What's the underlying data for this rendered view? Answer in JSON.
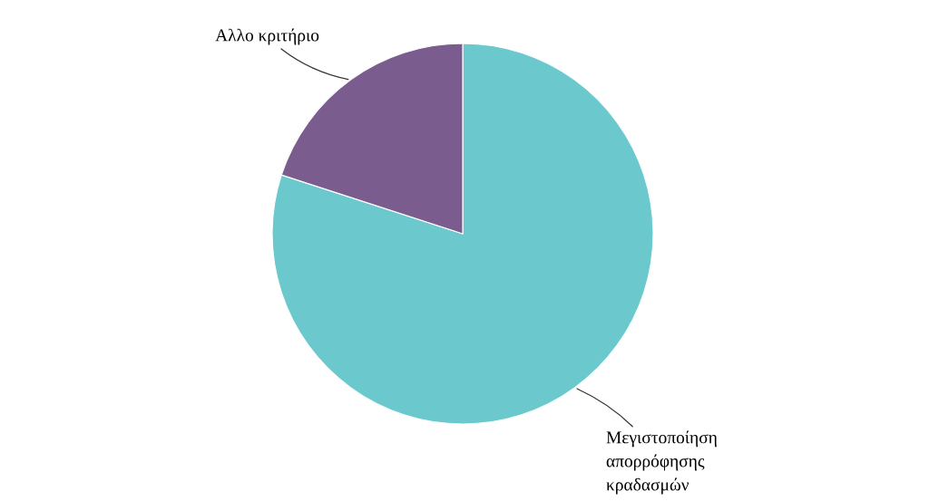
{
  "chart_data": {
    "type": "pie",
    "categories": [
      "Μεγιστοποίηση απορρόφησης κραδασμών",
      "Αλλο κριτήριο"
    ],
    "values": [
      80,
      20
    ],
    "colors": [
      "#6bc9ce",
      "#7b5c8e"
    ]
  }
}
